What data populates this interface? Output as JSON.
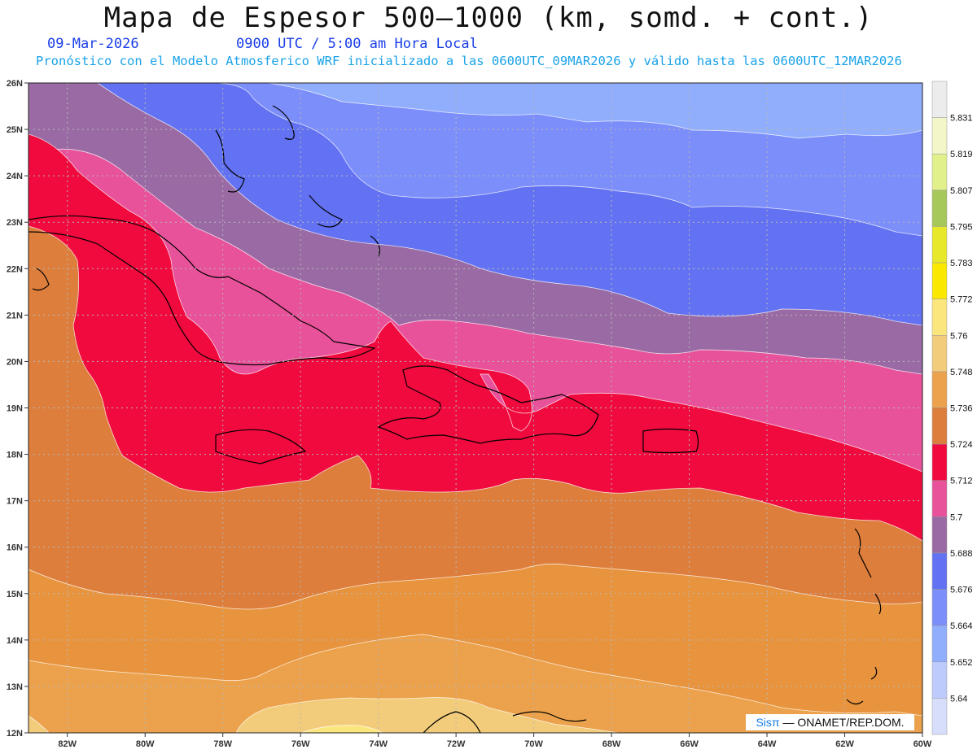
{
  "title": "Mapa de Espesor 500—1000 (km, somd. + cont.)",
  "date": "09-Mar-2026",
  "time": "0900 UTC / 5:00 am Hora Local",
  "subtitle": "Pronóstico con el Modelo Atmosferico WRF inicializado a las 0600UTC_09MAR2026 y válido hasta las  0600UTC_12MAR2026",
  "credit_brand": "Sisπ",
  "credit_org": "— ONAMET/REP.DOM.",
  "lat_labels": [
    "26N",
    "25N",
    "24N",
    "23N",
    "22N",
    "21N",
    "20N",
    "19N",
    "18N",
    "17N",
    "16N",
    "15N",
    "14N",
    "13N",
    "12N"
  ],
  "lon_labels": [
    "82W",
    "80W",
    "78W",
    "76W",
    "74W",
    "72W",
    "70W",
    "68W",
    "66W",
    "64W",
    "62W",
    "60W"
  ],
  "colorbar_labels": [
    "5.831",
    "5.819",
    "5.807",
    "5.795",
    "5.783",
    "5.772",
    "5.76",
    "5.748",
    "5.736",
    "5.724",
    "5.712",
    "5.7",
    "5.688",
    "5.676",
    "5.664",
    "5.652",
    "5.64"
  ],
  "colorbar_colors": [
    "#ececec",
    "#f2f6c8",
    "#e2f08c",
    "#a6c85a",
    "#e8e82a",
    "#fbe800",
    "#fbe67e",
    "#f2cc7a",
    "#eca24c",
    "#dd7e3c",
    "#f00a3e",
    "#e8529a",
    "#9a6aa4",
    "#6272f2",
    "#7c8efa",
    "#90aefc",
    "#bccafc"
  ],
  "band_colors": {
    "lightblue": "#90aefc",
    "medblue": "#7c8efa",
    "blue": "#6272f2",
    "purple": "#9a6aa4",
    "pink": "#e8529a",
    "red": "#f00a3e",
    "orange_dark": "#dd7e3c",
    "orange": "#e8943e",
    "orange_light": "#eca24c",
    "tan": "#f2cc7a",
    "yellow": "#fbe67e"
  }
}
